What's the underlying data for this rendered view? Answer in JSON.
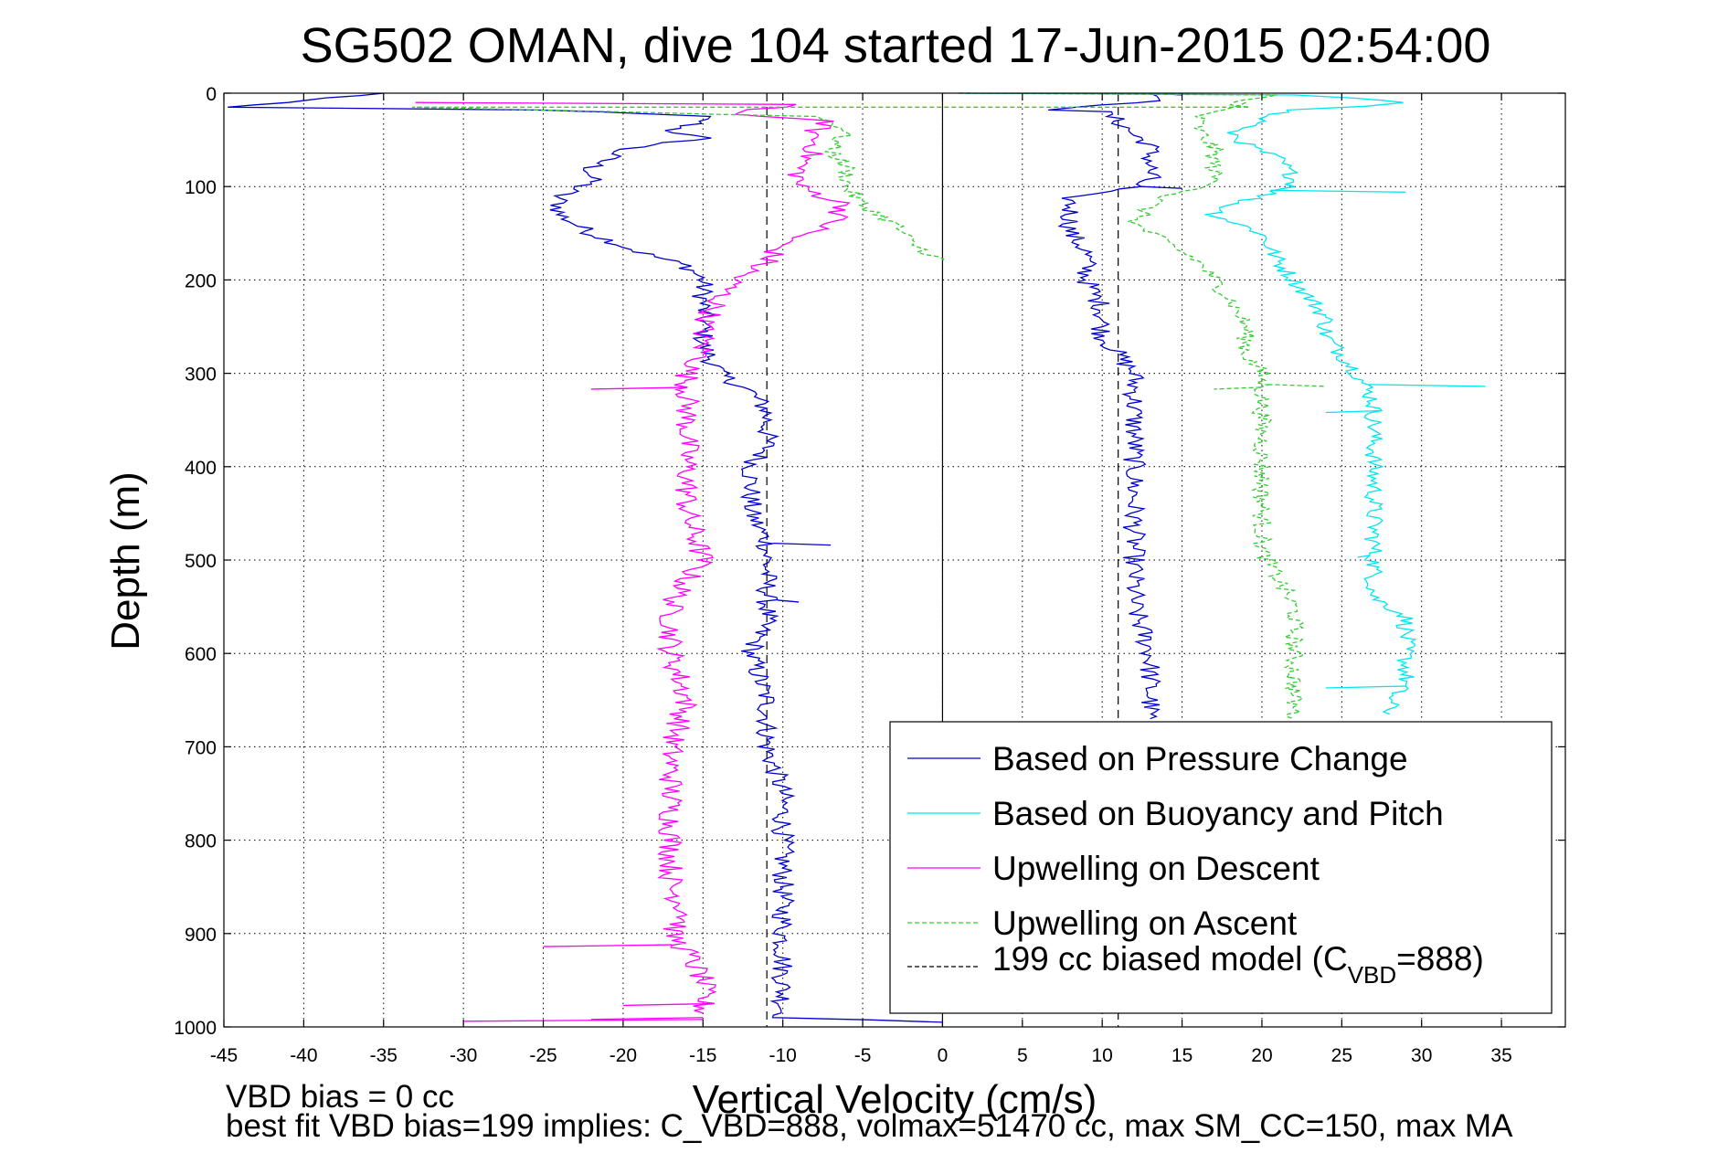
{
  "chart_data": {
    "type": "line",
    "title": "SG502 OMAN, dive 104 started 17-Jun-2015 02:54:00",
    "xlabel": "Vertical Velocity (cm/s)",
    "ylabel": "Depth (m)",
    "xlim": [
      -45,
      39
    ],
    "ylim": [
      0,
      1000
    ],
    "y_reversed": true,
    "grid": true,
    "x_ticks": [
      -45,
      -40,
      -35,
      -30,
      -25,
      -20,
      -15,
      -10,
      -5,
      0,
      5,
      10,
      15,
      20,
      25,
      30,
      35
    ],
    "y_ticks": [
      0,
      100,
      200,
      300,
      400,
      500,
      600,
      700,
      800,
      900,
      1000
    ],
    "zero_line": 0,
    "legend_position": "bottom-right",
    "footer": {
      "line1": "VBD bias = 0 cc",
      "line2": "best fit VBD bias=199 implies: C_VBD=888, volmax=51470 cc, max SM_CC=150, max MA"
    },
    "model_lines": {
      "name_prefix": "199 cc biased model (C",
      "name_sub": "VBD",
      "name_suffix": "=888)",
      "values": [
        -11,
        11
      ],
      "color": "#000000"
    },
    "series": [
      {
        "name": "Based on Pressure Change",
        "color": "#0000cc",
        "style": "solid",
        "noise": 0.7,
        "points": [
          [
            -35,
            0
          ],
          [
            -45,
            15
          ],
          [
            -25,
            18
          ],
          [
            -19,
            22
          ],
          [
            -15,
            25
          ],
          [
            -15,
            30
          ],
          [
            -17,
            40
          ],
          [
            -16,
            45
          ],
          [
            -15,
            48
          ],
          [
            -20,
            60
          ],
          [
            -22,
            80
          ],
          [
            -22,
            95
          ],
          [
            -24,
            110
          ],
          [
            -24,
            130
          ],
          [
            -22,
            150
          ],
          [
            -19,
            170
          ],
          [
            -16,
            185
          ],
          [
            -15,
            200
          ],
          [
            -15,
            230
          ],
          [
            -15,
            270
          ],
          [
            -14,
            300
          ],
          [
            -12,
            320
          ],
          [
            -11,
            340
          ],
          [
            -11,
            380
          ],
          [
            -12,
            400
          ],
          [
            -12,
            450
          ],
          [
            -11,
            480
          ],
          [
            -11,
            500
          ],
          [
            -11,
            560
          ],
          [
            -12,
            600
          ],
          [
            -11,
            650
          ],
          [
            -11,
            700
          ],
          [
            -10,
            750
          ],
          [
            -10,
            800
          ],
          [
            -10,
            850
          ],
          [
            -10,
            880
          ],
          [
            -10,
            900
          ],
          [
            -10,
            950
          ],
          [
            -10,
            990
          ],
          [
            0,
            995
          ]
        ],
        "spikes": [
          [
            -7,
            482
          ],
          [
            -9,
            543
          ]
        ]
      },
      {
        "name": "Based on Pressure Change",
        "show_in_legend": false,
        "color": "#0000cc",
        "style": "solid",
        "noise": 0.7,
        "points": [
          [
            13,
            0
          ],
          [
            14,
            3
          ],
          [
            13,
            8
          ],
          [
            9,
            15
          ],
          [
            7,
            18
          ],
          [
            10,
            20
          ],
          [
            11,
            30
          ],
          [
            12,
            45
          ],
          [
            13,
            55
          ],
          [
            13,
            70
          ],
          [
            13,
            90
          ],
          [
            12,
            100
          ],
          [
            8,
            110
          ],
          [
            8,
            130
          ],
          [
            8,
            150
          ],
          [
            9,
            170
          ],
          [
            9,
            200
          ],
          [
            10,
            230
          ],
          [
            10,
            260
          ],
          [
            11,
            280
          ],
          [
            12,
            300
          ],
          [
            12,
            320
          ],
          [
            12,
            350
          ],
          [
            12,
            400
          ],
          [
            12,
            500
          ],
          [
            12,
            550
          ],
          [
            13,
            600
          ],
          [
            13,
            650
          ],
          [
            13,
            670
          ]
        ],
        "spikes": [
          [
            15,
            0
          ],
          [
            15,
            100
          ]
        ]
      },
      {
        "name": "Based on Buoyancy and Pitch",
        "color": "#00e5ee",
        "style": "solid",
        "noise": 0.6,
        "points": [
          [
            1,
            0
          ],
          [
            22,
            2
          ],
          [
            25,
            5
          ],
          [
            29,
            10
          ],
          [
            27,
            14
          ],
          [
            22,
            18
          ],
          [
            20,
            25
          ],
          [
            20,
            32
          ],
          [
            18,
            40
          ],
          [
            19,
            55
          ],
          [
            21,
            70
          ],
          [
            22,
            90
          ],
          [
            22,
            100
          ],
          [
            18,
            120
          ],
          [
            17,
            130
          ],
          [
            20,
            150
          ],
          [
            21,
            180
          ],
          [
            22,
            200
          ],
          [
            23,
            220
          ],
          [
            24,
            240
          ],
          [
            24,
            260
          ],
          [
            25,
            280
          ],
          [
            26,
            300
          ],
          [
            27,
            330
          ],
          [
            27,
            350
          ],
          [
            27,
            400
          ],
          [
            27,
            450
          ],
          [
            27,
            500
          ],
          [
            27,
            540
          ],
          [
            29,
            560
          ],
          [
            29,
            600
          ],
          [
            29,
            630
          ],
          [
            28,
            650
          ],
          [
            28,
            665
          ]
        ],
        "spikes": [
          [
            34,
            312
          ],
          [
            29,
            104
          ],
          [
            24,
            340
          ],
          [
            26,
            495
          ],
          [
            24,
            635
          ]
        ]
      },
      {
        "name": "Upwelling on Descent",
        "color": "#ff00ff",
        "style": "solid",
        "noise": 0.8,
        "points": [
          [
            -33,
            10
          ],
          [
            -9,
            12
          ],
          [
            -10,
            15
          ],
          [
            -13,
            20
          ],
          [
            -12,
            25
          ],
          [
            -7,
            30
          ],
          [
            -8,
            40
          ],
          [
            -8,
            60
          ],
          [
            -9,
            80
          ],
          [
            -9,
            100
          ],
          [
            -6,
            120
          ],
          [
            -7,
            140
          ],
          [
            -10,
            160
          ],
          [
            -11,
            180
          ],
          [
            -13,
            200
          ],
          [
            -14,
            220
          ],
          [
            -15,
            250
          ],
          [
            -15,
            280
          ],
          [
            -16,
            300
          ],
          [
            -16,
            320
          ],
          [
            -16,
            350
          ],
          [
            -16,
            400
          ],
          [
            -16,
            450
          ],
          [
            -15,
            500
          ],
          [
            -16,
            520
          ],
          [
            -17,
            550
          ],
          [
            -17,
            600
          ],
          [
            -16,
            650
          ],
          [
            -17,
            700
          ],
          [
            -17,
            750
          ],
          [
            -17,
            800
          ],
          [
            -17,
            850
          ],
          [
            -16,
            880
          ],
          [
            -17,
            900
          ],
          [
            -16,
            920
          ],
          [
            -15,
            950
          ],
          [
            -15,
            985
          ]
        ],
        "spikes": [
          [
            -22,
            315
          ],
          [
            -25,
            912
          ],
          [
            -30,
            992
          ],
          [
            -22,
            990
          ],
          [
            -20,
            975
          ]
        ]
      },
      {
        "name": "Upwelling on Ascent",
        "color": "#33cc33",
        "style": "dashed",
        "noise": 0.6,
        "points": [
          [
            1,
            0
          ],
          [
            21,
            2
          ],
          [
            20,
            5
          ],
          [
            18,
            10
          ],
          [
            19,
            15
          ],
          [
            -33,
            15
          ],
          [
            -20,
            20
          ],
          [
            -8,
            25
          ],
          [
            -7,
            30
          ],
          [
            -6,
            40
          ],
          [
            -7,
            60
          ],
          [
            -6,
            80
          ],
          [
            -6,
            100
          ],
          [
            -5,
            120
          ],
          [
            -3,
            140
          ],
          [
            -2,
            160
          ],
          [
            0,
            180
          ]
        ],
        "spikes": []
      },
      {
        "name": "Upwelling on Ascent",
        "show_in_legend": false,
        "color": "#33cc33",
        "style": "dashed",
        "noise": 0.6,
        "points": [
          [
            19,
            10
          ],
          [
            16,
            25
          ],
          [
            16,
            40
          ],
          [
            17,
            60
          ],
          [
            17,
            80
          ],
          [
            17,
            100
          ],
          [
            14,
            110
          ],
          [
            13,
            120
          ],
          [
            12,
            140
          ],
          [
            14,
            160
          ],
          [
            16,
            180
          ],
          [
            17,
            200
          ],
          [
            18,
            220
          ],
          [
            19,
            250
          ],
          [
            19,
            280
          ],
          [
            20,
            300
          ],
          [
            20,
            320
          ],
          [
            20,
            350
          ],
          [
            20,
            400
          ],
          [
            20,
            450
          ],
          [
            20,
            490
          ],
          [
            21,
            520
          ],
          [
            22,
            550
          ],
          [
            22,
            600
          ],
          [
            22,
            640
          ],
          [
            22,
            670
          ]
        ],
        "spikes": [
          [
            17,
            315
          ],
          [
            24,
            312
          ],
          [
            22,
            625
          ]
        ]
      }
    ]
  }
}
